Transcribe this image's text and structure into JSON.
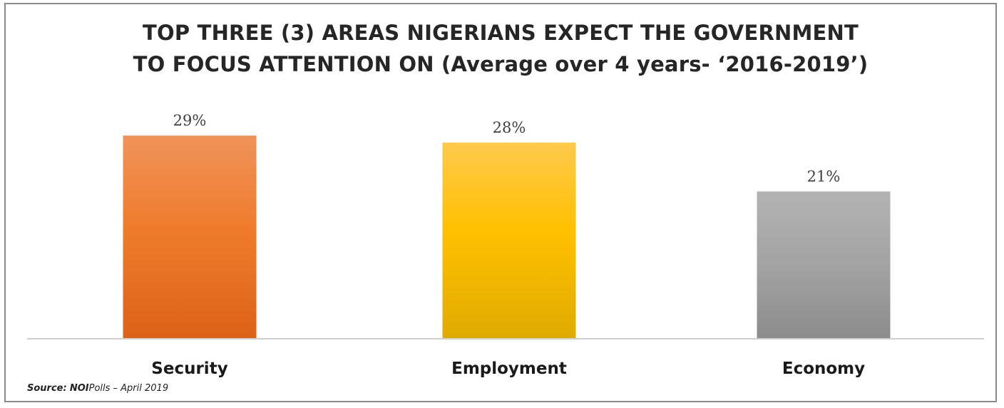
{
  "title": {
    "line1": "TOP THREE (3) AREAS NIGERIANS EXPECT THE GOVERNMENT",
    "line2": "TO FOCUS ATTENTION ON (Average over 4 years- ‘2016-2019’)"
  },
  "source": {
    "label": "Source:",
    "org": "NOI",
    "rest": "Polls – April 2019"
  },
  "chart_data": {
    "type": "bar",
    "title": "TOP THREE (3) AREAS NIGERIANS EXPECT THE GOVERNMENT TO FOCUS ATTENTION ON (Average over 4 years- ‘2016-2019’)",
    "categories": [
      "Security",
      "Employment",
      "Economy"
    ],
    "values": [
      29,
      28,
      21
    ],
    "value_labels": [
      "29%",
      "28%",
      "21%"
    ],
    "colors": [
      "#ee7a2c",
      "#ffc000",
      "#a6a6a6"
    ],
    "xlabel": "",
    "ylabel": "",
    "grid": false,
    "legend": "none"
  }
}
